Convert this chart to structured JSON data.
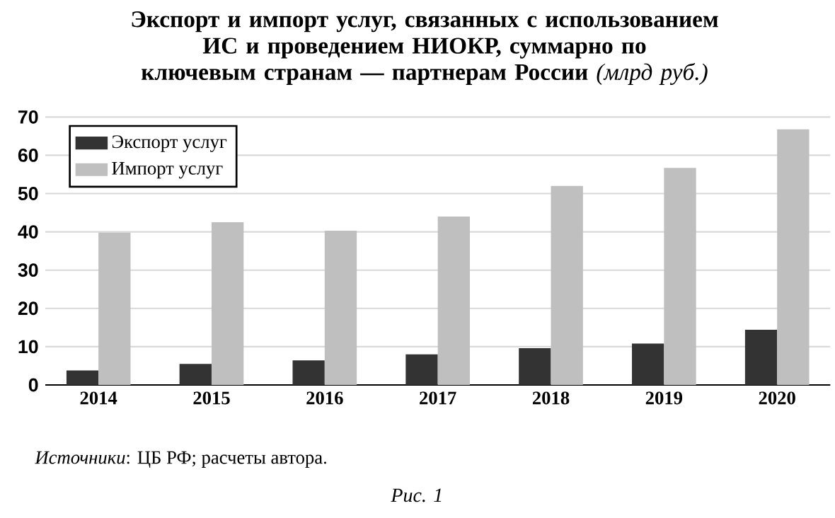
{
  "chart_data": {
    "type": "bar",
    "title": "**Экспорт и импорт услуг, связанных с использованием ИС и проведением НИОКР, суммарно по ключевым странам — партнерам России** *(млрд руб.)*",
    "categories": [
      "2014",
      "2015",
      "2016",
      "2017",
      "2018",
      "2019",
      "2020"
    ],
    "series": [
      {
        "name": "Экспорт услуг",
        "color": "#333333",
        "values": [
          3.8,
          5.5,
          6.4,
          8.0,
          9.6,
          10.8,
          14.4
        ]
      },
      {
        "name": "Импорт услуг",
        "color": "#bfbfbf",
        "values": [
          39.8,
          42.5,
          40.3,
          44.0,
          52.0,
          56.7,
          66.8
        ]
      }
    ],
    "ylim": [
      0,
      70
    ],
    "yticks": [
      0,
      10,
      20,
      30,
      40,
      50,
      60,
      70
    ],
    "grid": "y",
    "legend": "top left",
    "annotations": [
      "*Источники*: ЦБ РФ; расчеты автора.",
      "Рис. 1"
    ]
  }
}
